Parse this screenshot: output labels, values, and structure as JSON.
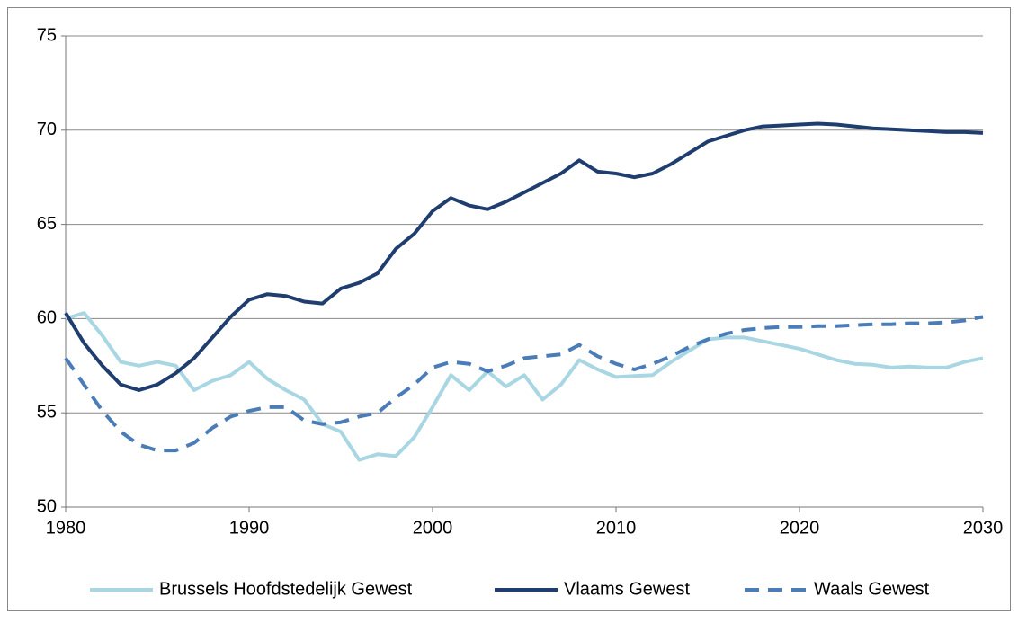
{
  "chart_data": {
    "type": "line",
    "x": [
      1980,
      1981,
      1982,
      1983,
      1984,
      1985,
      1986,
      1987,
      1988,
      1989,
      1990,
      1991,
      1992,
      1993,
      1994,
      1995,
      1996,
      1997,
      1998,
      1999,
      2000,
      2001,
      2002,
      2003,
      2004,
      2005,
      2006,
      2007,
      2008,
      2009,
      2010,
      2011,
      2012,
      2013,
      2014,
      2015,
      2016,
      2017,
      2018,
      2019,
      2020,
      2021,
      2022,
      2023,
      2024,
      2025,
      2026,
      2027,
      2028,
      2029,
      2030
    ],
    "series": [
      {
        "name": "Brussels Hoofdstedelijk Gewest",
        "color": "#a9d6e3",
        "dash": "solid",
        "values": [
          60.0,
          60.3,
          59.1,
          57.7,
          57.5,
          57.7,
          57.5,
          56.2,
          56.7,
          57.0,
          57.7,
          56.8,
          56.2,
          55.7,
          54.4,
          54.0,
          52.5,
          52.8,
          52.7,
          53.7,
          55.3,
          57.0,
          56.2,
          57.2,
          56.4,
          57.0,
          55.7,
          56.5,
          57.8,
          57.3,
          56.9,
          56.95,
          57.0,
          57.7,
          58.3,
          58.9,
          59.0,
          59.0,
          58.8,
          58.6,
          58.4,
          58.1,
          57.8,
          57.6,
          57.55,
          57.4,
          57.45,
          57.4,
          57.4,
          57.7,
          57.9
        ]
      },
      {
        "name": "Vlaams Gewest",
        "color": "#1f3e6f",
        "dash": "solid",
        "values": [
          60.3,
          58.7,
          57.5,
          56.5,
          56.2,
          56.5,
          57.1,
          57.9,
          59.0,
          60.1,
          61.0,
          61.3,
          61.2,
          60.9,
          60.8,
          61.6,
          61.9,
          62.4,
          63.7,
          64.5,
          65.7,
          66.4,
          66.0,
          65.8,
          66.2,
          66.7,
          67.2,
          67.7,
          68.4,
          67.8,
          67.7,
          67.5,
          67.7,
          68.2,
          68.8,
          69.4,
          69.7,
          70.0,
          70.2,
          70.25,
          70.3,
          70.35,
          70.3,
          70.2,
          70.1,
          70.05,
          70.0,
          69.95,
          69.9,
          69.9,
          69.85
        ]
      },
      {
        "name": "Waals Gewest",
        "color": "#4a7cb7",
        "dash": "dashed",
        "values": [
          57.9,
          56.5,
          55.1,
          54.0,
          53.3,
          53.0,
          53.0,
          53.4,
          54.2,
          54.8,
          55.1,
          55.3,
          55.3,
          54.6,
          54.4,
          54.5,
          54.8,
          55.0,
          55.8,
          56.5,
          57.4,
          57.7,
          57.6,
          57.2,
          57.5,
          57.9,
          58.0,
          58.1,
          58.6,
          58.0,
          57.6,
          57.3,
          57.6,
          58.0,
          58.5,
          58.9,
          59.2,
          59.4,
          59.5,
          59.55,
          59.55,
          59.6,
          59.6,
          59.65,
          59.7,
          59.7,
          59.75,
          59.75,
          59.8,
          59.9,
          60.1
        ]
      }
    ],
    "xlim": [
      1980,
      2030
    ],
    "xticks": [
      1980,
      1990,
      2000,
      2010,
      2020,
      2030
    ],
    "ylim": [
      50,
      75
    ],
    "yticks": [
      50,
      55,
      60,
      65,
      70,
      75
    ],
    "grid": true,
    "legend": "bottom"
  }
}
